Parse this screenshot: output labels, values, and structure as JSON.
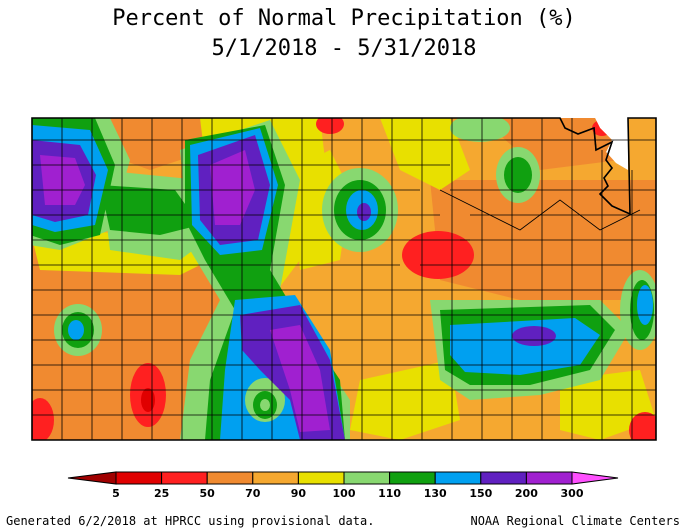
{
  "title_line1": "Percent of Normal Precipitation (%)",
  "title_line2": "5/1/2018 - 5/31/2018",
  "legend": {
    "ticks": [
      "5",
      "25",
      "50",
      "70",
      "90",
      "100",
      "110",
      "130",
      "150",
      "200",
      "300"
    ],
    "colors": [
      "#a00000",
      "#e00000",
      "#ff2020",
      "#f08a30",
      "#f5a830",
      "#e8e000",
      "#88d870",
      "#10a010",
      "#00a0f0",
      "#6020c0",
      "#a020d0",
      "#ff50ff"
    ]
  },
  "footer_left": "Generated 6/2/2018 at HPRCC using provisional data.",
  "footer_right": "NOAA Regional Climate Centers"
}
